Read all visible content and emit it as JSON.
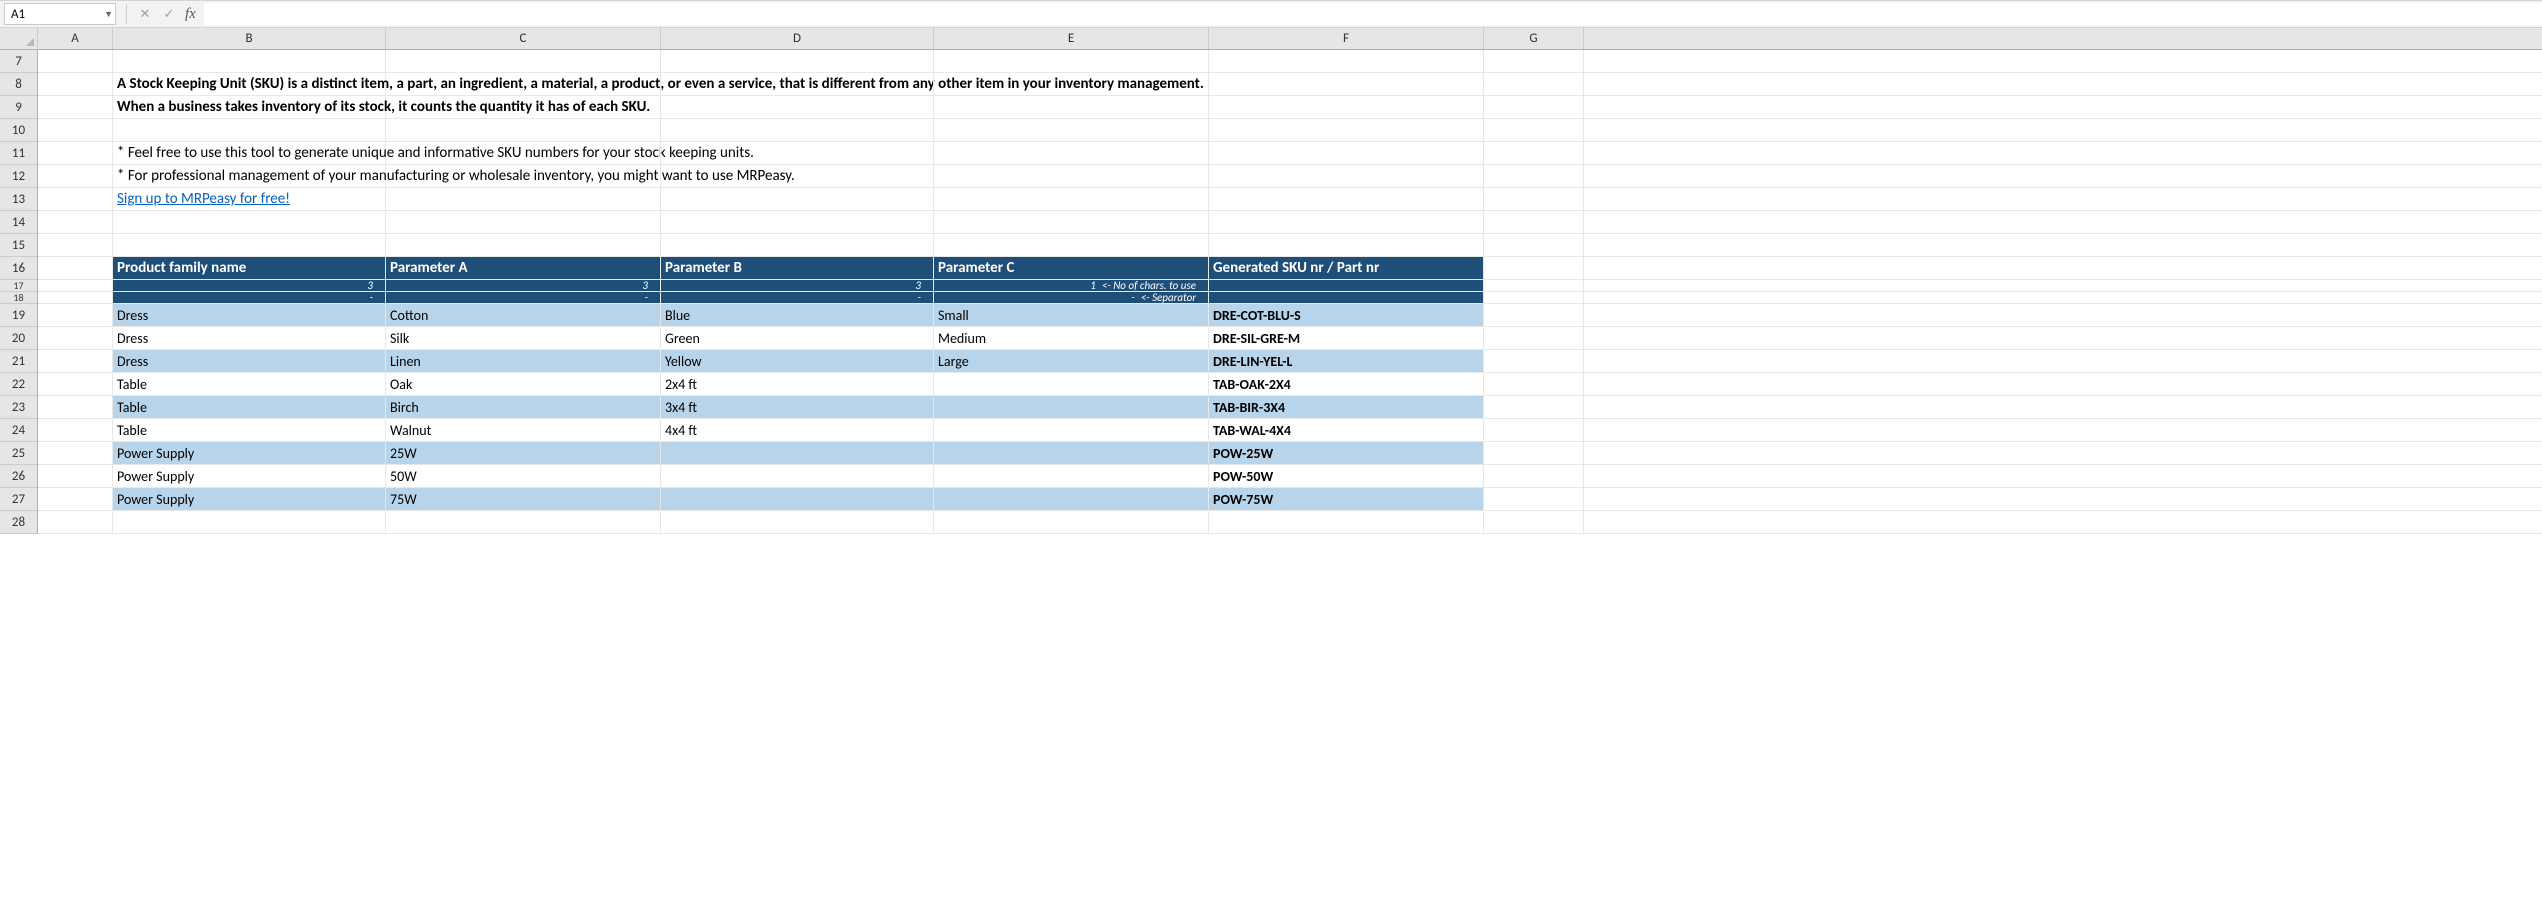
{
  "formula_bar": {
    "name_box": "A1",
    "fx_label": "fx",
    "formula_value": ""
  },
  "columns": [
    "A",
    "B",
    "C",
    "D",
    "E",
    "F",
    "G"
  ],
  "row_numbers": [
    "7",
    "8",
    "9",
    "10",
    "11",
    "12",
    "13",
    "14",
    "15",
    "16",
    "17",
    "18",
    "19",
    "20",
    "21",
    "22",
    "23",
    "24",
    "25",
    "26",
    "27",
    "28"
  ],
  "intro": {
    "line1": "A Stock Keeping Unit (SKU) is a distinct item, a part, an ingredient, a material, a product, or even a service, that is different from any other item in your inventory management.",
    "line2": "When a business takes inventory of its stock, it counts the quantity it has of each SKU.",
    "bullet1": "* Feel free to use this tool to generate unique and informative SKU numbers for your stock keeping units.",
    "bullet2": "* For professional management of your manufacturing or wholesale inventory, you might want to use MRPeasy.",
    "link": "Sign up to MRPeasy for free!"
  },
  "table": {
    "headers": {
      "product_family": "Product family name",
      "param_a": "Parameter A",
      "param_b": "Parameter B",
      "param_c": "Parameter C",
      "generated": "Generated SKU nr / Part nr"
    },
    "sub": {
      "chars_b": "3",
      "chars_c": "3",
      "chars_d": "3",
      "chars_e": "1",
      "hint_chars": "<- No of chars. to use",
      "sep_b": "-",
      "sep_c": "-",
      "sep_d": "-",
      "sep_e": "-",
      "hint_sep": "<- Separator"
    },
    "rows": [
      {
        "family": "Dress",
        "a": "Cotton",
        "b": "Blue",
        "c": "Small",
        "sku": "DRE-COT-BLU-S",
        "stripe": "light"
      },
      {
        "family": "Dress",
        "a": "Silk",
        "b": "Green",
        "c": "Medium",
        "sku": "DRE-SIL-GRE-M",
        "stripe": "white"
      },
      {
        "family": "Dress",
        "a": "Linen",
        "b": "Yellow",
        "c": "Large",
        "sku": "DRE-LIN-YEL-L",
        "stripe": "light"
      },
      {
        "family": "Table",
        "a": "Oak",
        "b": "2x4 ft",
        "c": "",
        "sku": "TAB-OAK-2X4",
        "stripe": "white"
      },
      {
        "family": "Table",
        "a": "Birch",
        "b": "3x4 ft",
        "c": "",
        "sku": "TAB-BIR-3X4",
        "stripe": "light"
      },
      {
        "family": "Table",
        "a": "Walnut",
        "b": "4x4 ft",
        "c": "",
        "sku": "TAB-WAL-4X4",
        "stripe": "white"
      },
      {
        "family": "Power Supply",
        "a": "25W",
        "b": "",
        "c": "",
        "sku": "POW-25W",
        "stripe": "light"
      },
      {
        "family": "Power Supply",
        "a": "50W",
        "b": "",
        "c": "",
        "sku": "POW-50W",
        "stripe": "white"
      },
      {
        "family": "Power Supply",
        "a": "75W",
        "b": "",
        "c": "",
        "sku": "POW-75W",
        "stripe": "light"
      }
    ]
  },
  "colors": {
    "header_bg": "#1f4e79",
    "stripe_light": "#b8d4ea",
    "stripe_white": "#ffffff",
    "excel_green": "#217346",
    "link": "#0563c1"
  }
}
